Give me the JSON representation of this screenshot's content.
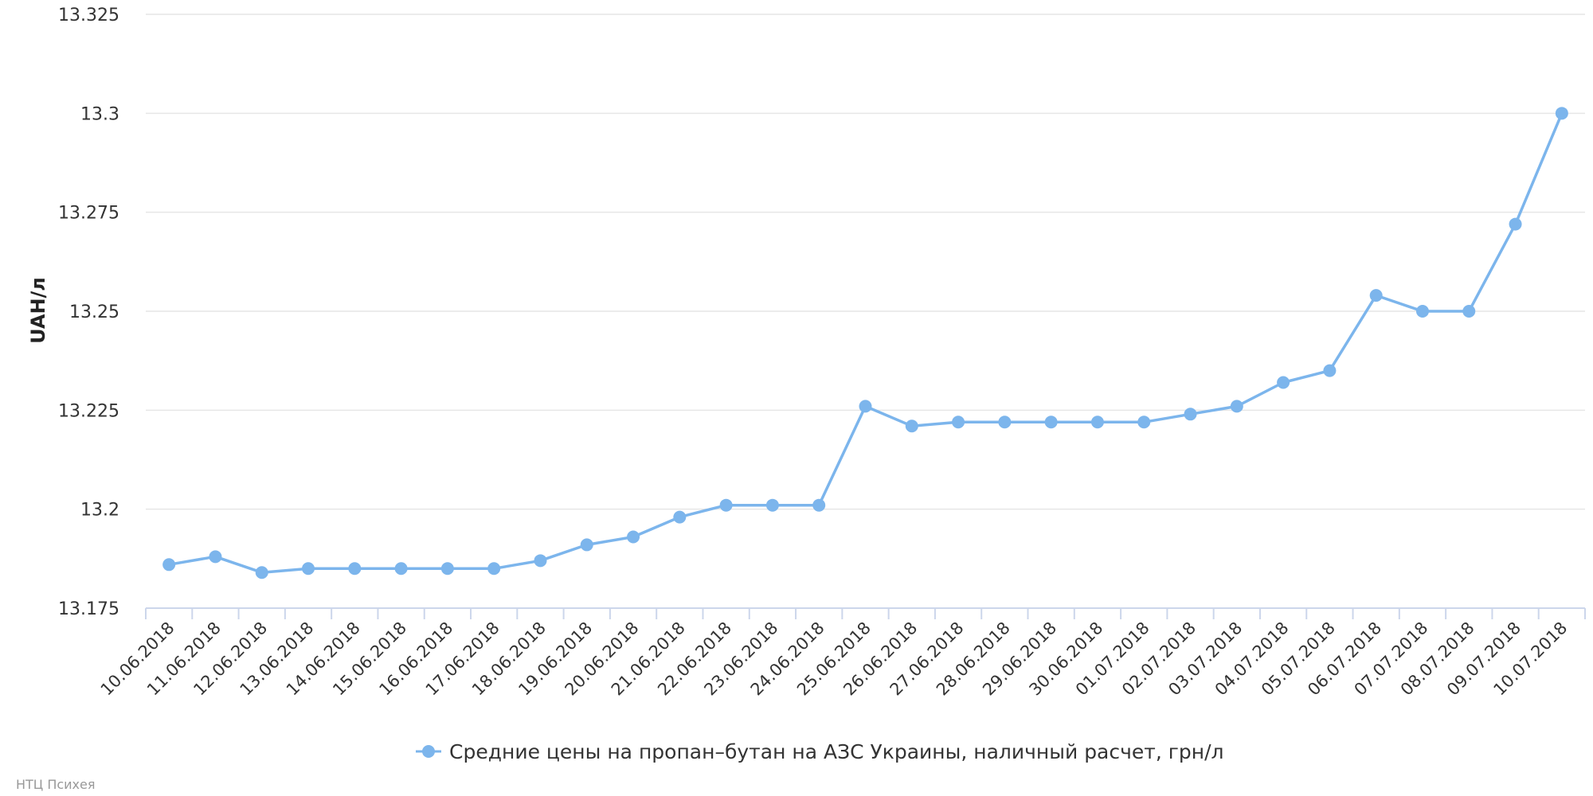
{
  "chart_data": {
    "type": "line",
    "title": "",
    "ylabel": "UAH/л",
    "xlabel": "",
    "ylim": [
      13.175,
      13.325
    ],
    "yticks": [
      "13.175",
      "13.2",
      "13.225",
      "13.25",
      "13.275",
      "13.3",
      "13.325"
    ],
    "grid": true,
    "legend_position": "bottom-center",
    "categories": [
      "10.06.2018",
      "11.06.2018",
      "12.06.2018",
      "13.06.2018",
      "14.06.2018",
      "15.06.2018",
      "16.06.2018",
      "17.06.2018",
      "18.06.2018",
      "19.06.2018",
      "20.06.2018",
      "21.06.2018",
      "22.06.2018",
      "23.06.2018",
      "24.06.2018",
      "25.06.2018",
      "26.06.2018",
      "27.06.2018",
      "28.06.2018",
      "29.06.2018",
      "30.06.2018",
      "01.07.2018",
      "02.07.2018",
      "03.07.2018",
      "04.07.2018",
      "05.07.2018",
      "06.07.2018",
      "07.07.2018",
      "08.07.2018",
      "09.07.2018",
      "10.07.2018"
    ],
    "series": [
      {
        "name": "Средние цены на пропан–бутан на АЗС Украины, наличный расчет, грн/л",
        "color": "#7cb5ec",
        "values": [
          13.186,
          13.188,
          13.184,
          13.185,
          13.185,
          13.185,
          13.185,
          13.185,
          13.187,
          13.191,
          13.193,
          13.198,
          13.201,
          13.201,
          13.201,
          13.226,
          13.221,
          13.222,
          13.222,
          13.222,
          13.222,
          13.222,
          13.224,
          13.226,
          13.232,
          13.235,
          13.254,
          13.25,
          13.25,
          13.272,
          13.3
        ]
      }
    ]
  },
  "credit": "НТЦ Психея",
  "colors": {
    "grid": "#e6e6e6",
    "axis": "#ccd6eb",
    "line": "#7cb5ec"
  }
}
